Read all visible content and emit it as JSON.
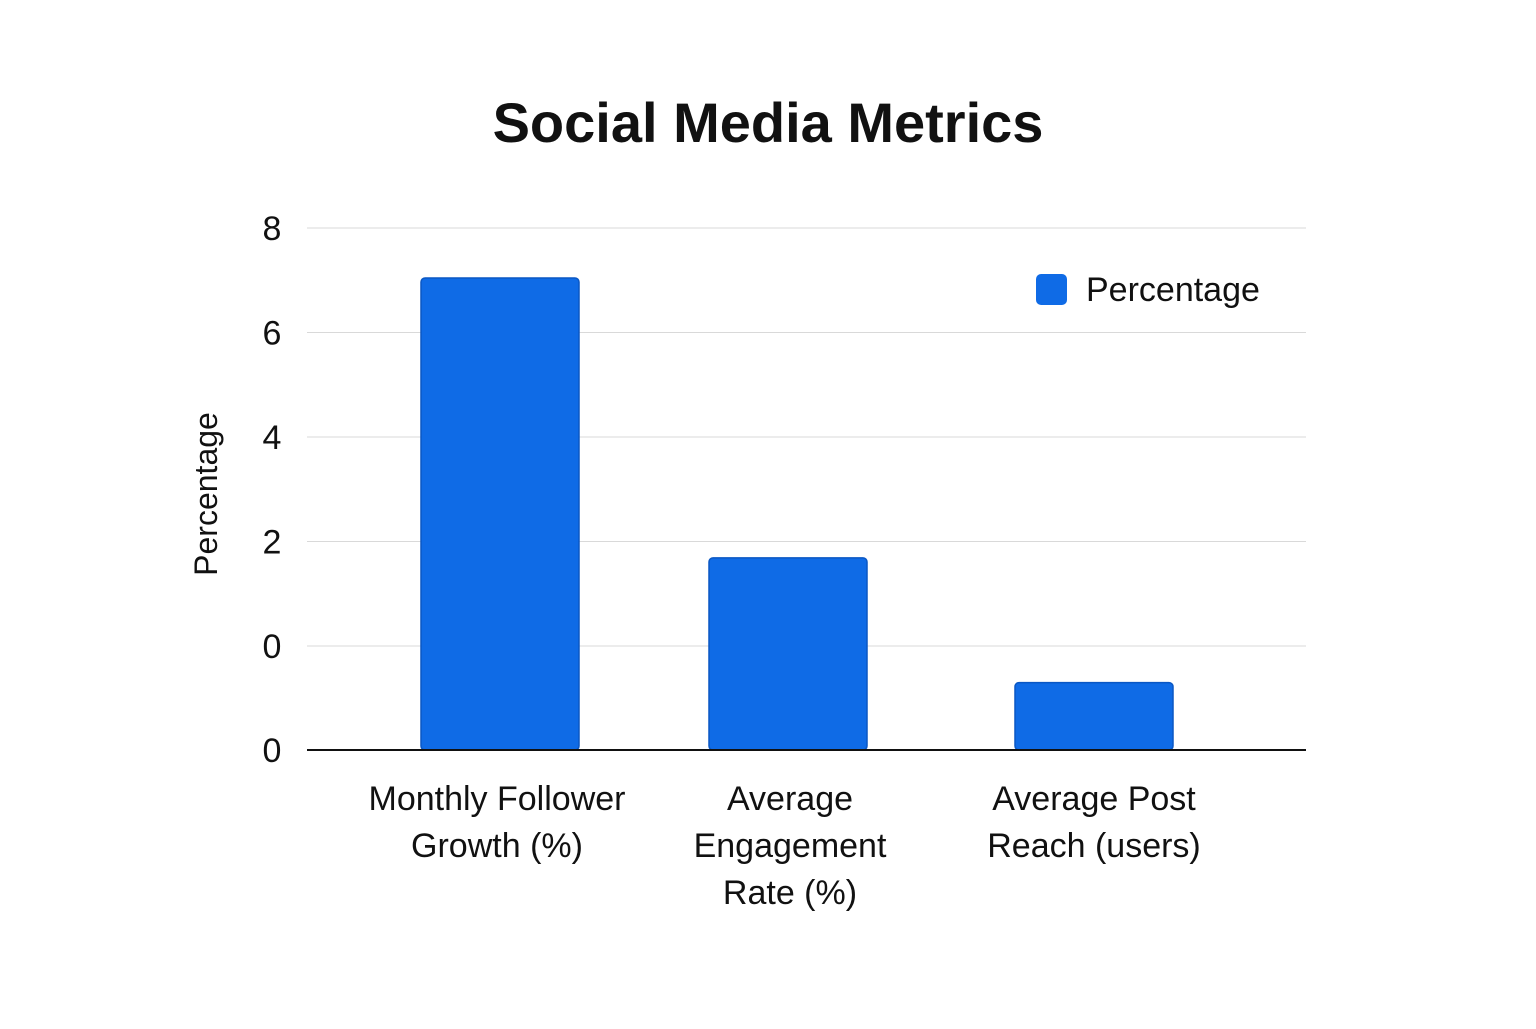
{
  "chart_data": {
    "type": "bar",
    "title": "Social Media Metrics",
    "xlabel": "",
    "ylabel": "Percentage",
    "categories": [
      [
        "Monthly Follower",
        "Growth (%)"
      ],
      [
        "Average",
        "Engagement",
        "Rate (%)"
      ],
      [
        "Average Post",
        "Reach (users)"
      ]
    ],
    "series": [
      {
        "name": "Percentage",
        "values": [
          7.0,
          2.85,
          1.0
        ]
      }
    ],
    "y_tick_labels": [
      "8",
      "6",
      "4",
      "2",
      "0",
      "0"
    ],
    "ylim": [
      0,
      8
    ],
    "grid": true,
    "legend": "top-right",
    "colors": {
      "bar": "#0f6be6",
      "bar_edge": "#0a57c4",
      "grid": "#d9d9d9",
      "axis": "#111111",
      "text": "#111111"
    }
  }
}
